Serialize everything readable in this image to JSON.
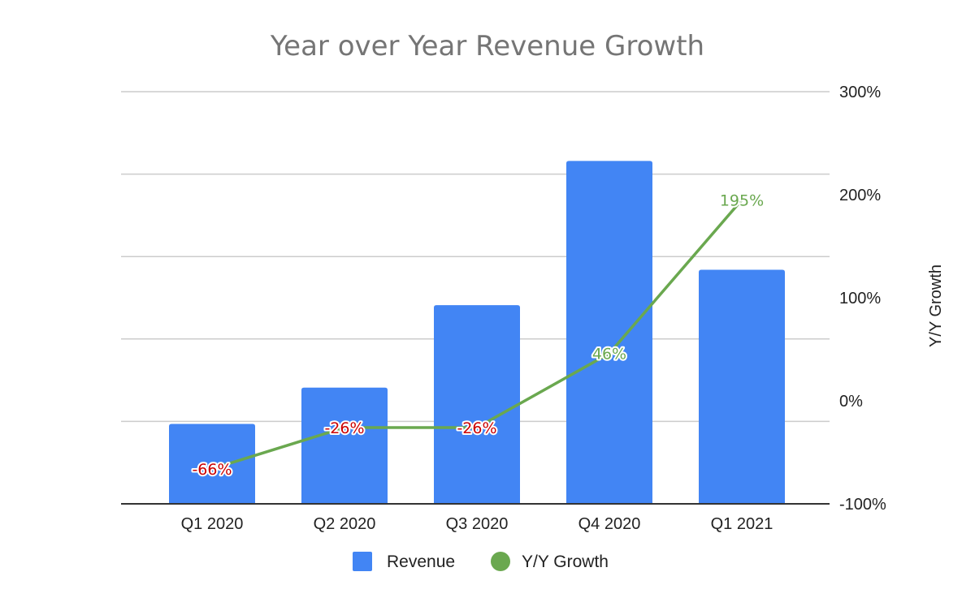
{
  "chart_data": {
    "type": "bar",
    "combo": "bar+line",
    "title": "Year over Year Revenue Growth",
    "categories": [
      "Q1 2020",
      "Q2 2020",
      "Q3 2020",
      "Q4 2020",
      "Q1 2021"
    ],
    "series": [
      {
        "name": "Revenue",
        "type": "bar",
        "axis": "left",
        "color": "#4285F4",
        "values_relative": [
          0.97,
          1.41,
          2.41,
          4.16,
          2.84
        ],
        "note": "left axis unlabeled; values in gridline units"
      },
      {
        "name": "Y/Y Growth",
        "type": "line",
        "axis": "right",
        "color": "#6AA84F",
        "values": [
          -66,
          -26,
          -26,
          46,
          195
        ],
        "labels": [
          "-66%",
          "-26%",
          "-26%",
          "46%",
          "195%"
        ],
        "label_colors": [
          "#CC0000",
          "#CC0000",
          "#CC0000",
          "#6AA84F",
          "#6AA84F"
        ]
      }
    ],
    "left_axis": {
      "ylim": [
        0,
        5
      ],
      "tick_labels_visible": false
    },
    "right_axis": {
      "title": "Y/Y Growth",
      "ylim": [
        -100,
        300
      ],
      "ticks": [
        300,
        200,
        100,
        0,
        -100
      ],
      "tick_labels": [
        "300%",
        "200%",
        "100%",
        "0%",
        "-100%"
      ]
    },
    "grid": true,
    "legend": {
      "position": "bottom",
      "entries": [
        {
          "label": "Revenue",
          "marker": "square",
          "color": "#4285F4"
        },
        {
          "label": "Y/Y Growth",
          "marker": "circle",
          "color": "#6AA84F"
        }
      ]
    }
  }
}
